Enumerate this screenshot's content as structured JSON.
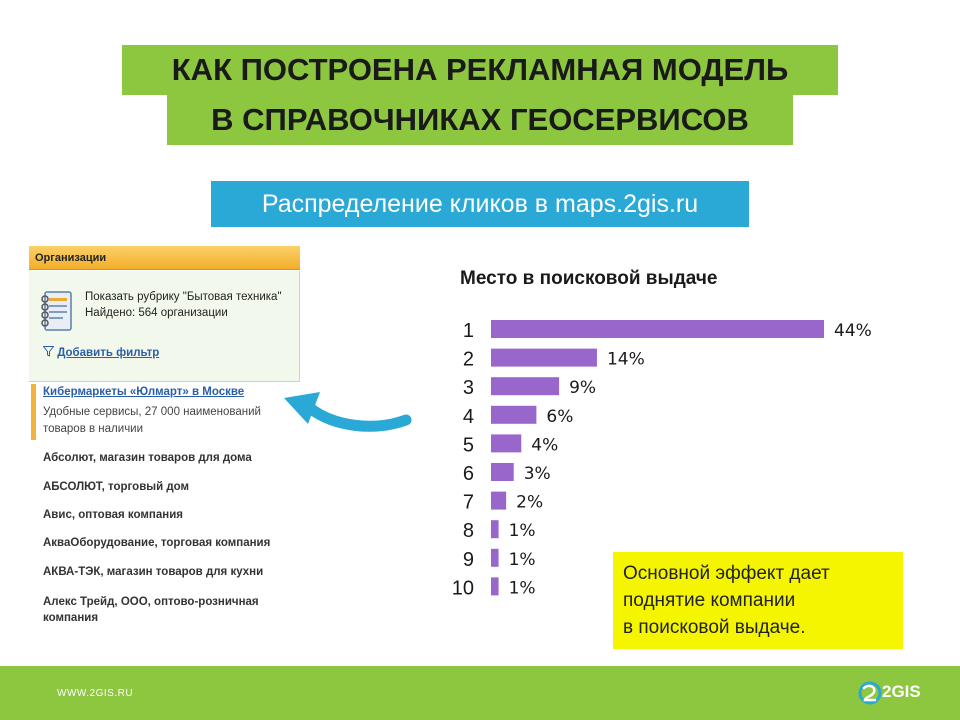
{
  "title": {
    "line1": "КАК ПОСТРОЕНА РЕКЛАМНАЯ МОДЕЛЬ",
    "line2": "В СПРАВОЧНИКАХ ГЕОСЕРВИСОВ"
  },
  "subtitle": "Распределение кликов в maps.2gis.ru",
  "panel": {
    "header": "Организации",
    "rubric_label": "Показать рубрику \"Бытовая техника\"",
    "found_label": "Найдено: 564 организации",
    "filter_label": "Добавить фильтр",
    "featured": {
      "name": "Кибермаркеты «Юлмарт» в Москве",
      "description": "Удобные сервисы, 27 000 наименований товаров в наличии"
    },
    "organizations": [
      "Абсолют, магазин товаров для дома",
      "АБСОЛЮТ, торговый дом",
      "Авис, оптовая компания",
      "АкваОборудование, торговая компания",
      "АКВА-ТЭК, магазин товаров для кухни",
      "Алекс Трейд, ООО, оптово-розничная компания"
    ]
  },
  "chart_data": {
    "type": "bar",
    "orientation": "horizontal",
    "title": "Место в поисковой выдаче",
    "categories": [
      "1",
      "2",
      "3",
      "4",
      "5",
      "6",
      "7",
      "8",
      "9",
      "10"
    ],
    "values": [
      44,
      14,
      9,
      6,
      4,
      3,
      2,
      1,
      1,
      1
    ],
    "value_labels": [
      "44%",
      "14%",
      "9%",
      "6%",
      "4%",
      "3%",
      "2%",
      "1%",
      "1%",
      "1%"
    ],
    "unit": "%",
    "bar_color": "#9966cc",
    "xlim": [
      0,
      44
    ]
  },
  "note": [
    "Основной эффект дает",
    "поднятие компании",
    "в поисковой выдаче."
  ],
  "footer": {
    "url": "WWW.2GIS.RU",
    "logo": "2GIS"
  },
  "colors": {
    "accent_green": "#8dc63f",
    "subtitle_blue": "#2aa8d6",
    "note_yellow": "#f5f500",
    "arrow_blue": "#2aa8d6"
  }
}
